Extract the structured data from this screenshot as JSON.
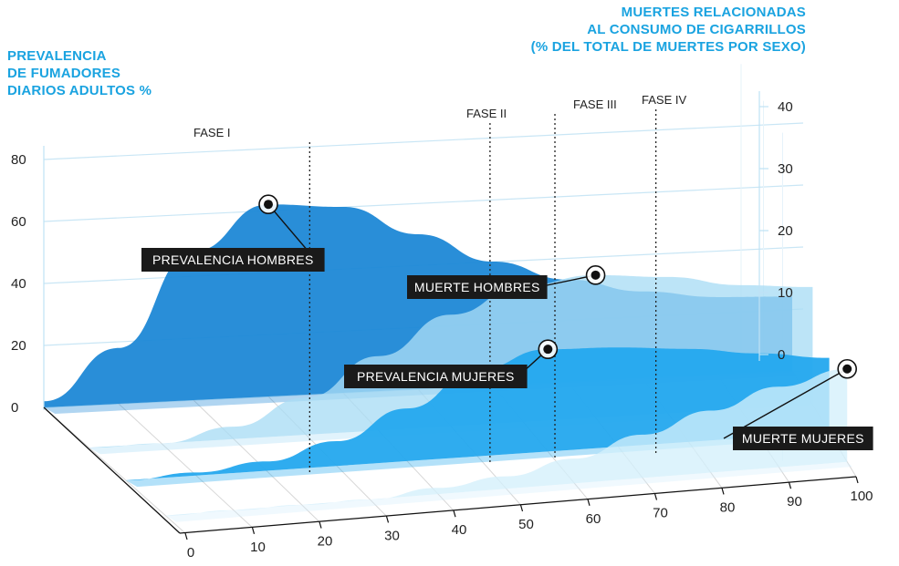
{
  "titles": {
    "left": [
      "PREVALENCIA",
      "DE FUMADORES",
      "DIARIOS ADULTOS %"
    ],
    "right": [
      "MUERTES RELACIONADAS",
      "AL CONSUMO DE CIGARRILLOS",
      "(% DEL TOTAL DE MUERTES POR SEXO)"
    ]
  },
  "chart_data": {
    "type": "area",
    "x": [
      0,
      10,
      20,
      30,
      40,
      50,
      60,
      70,
      80,
      90,
      100
    ],
    "xlabel": "",
    "x_ticks": [
      "0",
      "10",
      "20",
      "30",
      "40",
      "50",
      "60",
      "70",
      "80",
      "90",
      "100"
    ],
    "left_axis": {
      "label": "PREVALENCIA DE FUMADORES DIARIOS ADULTOS %",
      "ticks": [
        "0",
        "20",
        "40",
        "60",
        "80"
      ],
      "ylim": [
        0,
        80
      ]
    },
    "right_axis": {
      "label": "MUERTES RELACIONADAS AL CONSUMO DE CIGARRILLOS (% DEL TOTAL DE MUERTES POR SEXO)",
      "ticks": [
        "0",
        "10",
        "20",
        "30",
        "40"
      ],
      "ylim": [
        0,
        40
      ]
    },
    "phases": [
      "FASE I",
      "FASE II",
      "FASE III",
      "FASE IV"
    ],
    "series": [
      {
        "name": "PREVALENCIA HOMBRES",
        "axis": "left",
        "color": "#1e88d6",
        "values": [
          2,
          18,
          48,
          62,
          60,
          50,
          40,
          33,
          28,
          25,
          24
        ]
      },
      {
        "name": "MUERTE HOMBRES",
        "axis": "right",
        "color": "#a9dcf5",
        "values": [
          0,
          0,
          2,
          6,
          12,
          18,
          22,
          23,
          22,
          20,
          19
        ]
      },
      {
        "name": "PREVALENCIA MUJERES",
        "axis": "left",
        "color": "#24a8ee",
        "values": [
          0,
          1,
          3,
          8,
          17,
          28,
          33,
          32,
          30,
          27,
          24
        ]
      },
      {
        "name": "MUERTE MUJERES",
        "axis": "right",
        "color": "#d4effb",
        "values": [
          0,
          0,
          0,
          0,
          1,
          2,
          4,
          7,
          10,
          13,
          15
        ]
      }
    ],
    "callouts": [
      "PREVALENCIA HOMBRES",
      "MUERTE HOMBRES",
      "PREVALENCIA MUJERES",
      "MUERTE MUJERES"
    ],
    "grid": true,
    "colors": {
      "title": "#1aa3e0",
      "callout_bg": "#1a1a1a"
    }
  }
}
